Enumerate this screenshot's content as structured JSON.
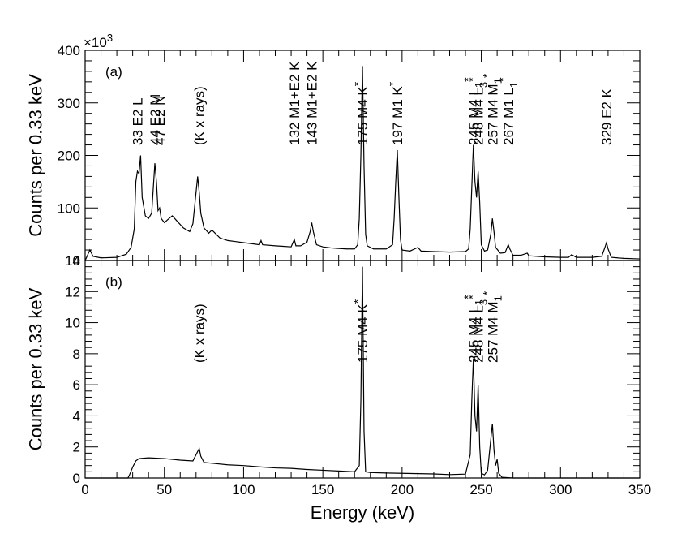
{
  "chart_data": [
    {
      "type": "line",
      "panel": "(a)",
      "ylabel": "Counts per 0.33 keV",
      "multiplier_base": "×10",
      "multiplier_exp": "3",
      "xlim": [
        0,
        350
      ],
      "ylim": [
        0,
        400
      ],
      "xticks": [
        "0",
        "50",
        "100",
        "150",
        "200",
        "250",
        "300",
        "350"
      ],
      "yticks": [
        "0",
        "100",
        "200",
        "300",
        "400"
      ],
      "annotations": [
        {
          "text": "33 E2 L",
          "x": 33
        },
        {
          "text": "44 E2 M",
          "x": 44
        },
        {
          "text": "47 E2 N",
          "x": 47
        },
        {
          "text": "(K x rays)",
          "x": 72
        },
        {
          "text": "132 M1+E2 K",
          "x": 132
        },
        {
          "text": "143 M1+E2 K",
          "x": 143
        },
        {
          "text": "175 M4 K*",
          "x": 175
        },
        {
          "text": "197 M1 K*",
          "x": 197
        },
        {
          "text": "245 M4 L1*",
          "x": 245
        },
        {
          "text": "248 M4 L3*",
          "x": 248
        },
        {
          "text": "257 M4 M1*",
          "x": 257
        },
        {
          "text": "267 M1 L1*",
          "x": 267
        },
        {
          "text": "329 E2 K",
          "x": 329
        }
      ],
      "background": [
        [
          0,
          0
        ],
        [
          3,
          20
        ],
        [
          5,
          8
        ],
        [
          10,
          5
        ],
        [
          20,
          6
        ],
        [
          26,
          12
        ],
        [
          29,
          25
        ],
        [
          31,
          60
        ],
        [
          32,
          150
        ],
        [
          33,
          170
        ],
        [
          34,
          165
        ],
        [
          35,
          200
        ],
        [
          36,
          120
        ],
        [
          38,
          85
        ],
        [
          40,
          80
        ],
        [
          42,
          90
        ],
        [
          44,
          185
        ],
        [
          45,
          150
        ],
        [
          46,
          95
        ],
        [
          47,
          100
        ],
        [
          48,
          80
        ],
        [
          50,
          72
        ],
        [
          53,
          80
        ],
        [
          55,
          85
        ],
        [
          58,
          75
        ],
        [
          62,
          62
        ],
        [
          66,
          55
        ],
        [
          68,
          70
        ],
        [
          69,
          100
        ],
        [
          70,
          130
        ],
        [
          71,
          160
        ],
        [
          72,
          130
        ],
        [
          73,
          90
        ],
        [
          75,
          62
        ],
        [
          78,
          52
        ],
        [
          80,
          58
        ],
        [
          82,
          52
        ],
        [
          85,
          43
        ],
        [
          90,
          38
        ],
        [
          95,
          36
        ],
        [
          100,
          34
        ],
        [
          105,
          32
        ],
        [
          110,
          30
        ],
        [
          111,
          38
        ],
        [
          112,
          30
        ],
        [
          120,
          28
        ],
        [
          125,
          27
        ],
        [
          130,
          26
        ],
        [
          132,
          40
        ],
        [
          133,
          28
        ],
        [
          136,
          28
        ],
        [
          140,
          35
        ],
        [
          142,
          55
        ],
        [
          143,
          72
        ],
        [
          144,
          55
        ],
        [
          146,
          30
        ],
        [
          150,
          26
        ],
        [
          155,
          24
        ],
        [
          160,
          23
        ],
        [
          165,
          22
        ],
        [
          170,
          22
        ],
        [
          172,
          30
        ],
        [
          173,
          80
        ],
        [
          174,
          200
        ],
        [
          175,
          370
        ],
        [
          176,
          180
        ],
        [
          177,
          50
        ],
        [
          178,
          28
        ],
        [
          182,
          22
        ],
        [
          186,
          22
        ],
        [
          190,
          22
        ],
        [
          194,
          30
        ],
        [
          195,
          80
        ],
        [
          196,
          150
        ],
        [
          197,
          210
        ],
        [
          198,
          120
        ],
        [
          199,
          40
        ],
        [
          200,
          20
        ],
        [
          205,
          18
        ],
        [
          210,
          25
        ],
        [
          212,
          18
        ],
        [
          220,
          17
        ],
        [
          230,
          16
        ],
        [
          240,
          17
        ],
        [
          242,
          22
        ],
        [
          243,
          60
        ],
        [
          244,
          140
        ],
        [
          245,
          220
        ],
        [
          246,
          150
        ],
        [
          247,
          120
        ],
        [
          248,
          170
        ],
        [
          249,
          110
        ],
        [
          250,
          30
        ],
        [
          252,
          18
        ],
        [
          254,
          20
        ],
        [
          256,
          50
        ],
        [
          257,
          80
        ],
        [
          258,
          55
        ],
        [
          259,
          25
        ],
        [
          262,
          14
        ],
        [
          265,
          15
        ],
        [
          267,
          30
        ],
        [
          268,
          22
        ],
        [
          270,
          10
        ],
        [
          275,
          10
        ],
        [
          279,
          14
        ],
        [
          280,
          9
        ],
        [
          290,
          7
        ],
        [
          300,
          6
        ],
        [
          305,
          6
        ],
        [
          307,
          11
        ],
        [
          310,
          6
        ],
        [
          320,
          6
        ],
        [
          326,
          8
        ],
        [
          328,
          25
        ],
        [
          329,
          34
        ],
        [
          330,
          22
        ],
        [
          332,
          6
        ],
        [
          340,
          4
        ],
        [
          350,
          3
        ]
      ]
    },
    {
      "type": "line",
      "panel": "(b)",
      "ylabel": "Counts per 0.33 keV",
      "xlabel": "Energy (keV)",
      "xlim": [
        0,
        350
      ],
      "ylim": [
        0,
        14
      ],
      "xticks": [
        "0",
        "50",
        "100",
        "150",
        "200",
        "250",
        "300",
        "350"
      ],
      "yticks": [
        "0",
        "2",
        "4",
        "6",
        "8",
        "10",
        "12",
        "14"
      ],
      "annotations": [
        {
          "text": "(K x rays)",
          "x": 72
        },
        {
          "text": "175 M4 K*",
          "x": 175
        },
        {
          "text": "245 M4 L1*",
          "x": 245
        },
        {
          "text": "248 M4 L3*",
          "x": 248
        },
        {
          "text": "257 M4 M1*",
          "x": 257
        }
      ],
      "background": [
        [
          0,
          0
        ],
        [
          27,
          0
        ],
        [
          28,
          0.2
        ],
        [
          30,
          0.7
        ],
        [
          32,
          1.1
        ],
        [
          34,
          1.25
        ],
        [
          40,
          1.3
        ],
        [
          50,
          1.25
        ],
        [
          60,
          1.15
        ],
        [
          68,
          1.1
        ],
        [
          70,
          1.5
        ],
        [
          72,
          1.9
        ],
        [
          73,
          1.4
        ],
        [
          75,
          1.0
        ],
        [
          80,
          0.95
        ],
        [
          90,
          0.85
        ],
        [
          100,
          0.8
        ],
        [
          110,
          0.72
        ],
        [
          120,
          0.65
        ],
        [
          130,
          0.62
        ],
        [
          140,
          0.55
        ],
        [
          150,
          0.5
        ],
        [
          160,
          0.45
        ],
        [
          170,
          0.4
        ],
        [
          173,
          0.8
        ],
        [
          174,
          5
        ],
        [
          175,
          13.6
        ],
        [
          176,
          3
        ],
        [
          177,
          0.4
        ],
        [
          180,
          0.35
        ],
        [
          190,
          0.32
        ],
        [
          200,
          0.3
        ],
        [
          210,
          0.28
        ],
        [
          220,
          0.26
        ],
        [
          230,
          0.22
        ],
        [
          240,
          0.25
        ],
        [
          243,
          1.5
        ],
        [
          244,
          5
        ],
        [
          245,
          7.7
        ],
        [
          246,
          4
        ],
        [
          247,
          3
        ],
        [
          248,
          6
        ],
        [
          249,
          2
        ],
        [
          250,
          0.3
        ],
        [
          252,
          0.2
        ],
        [
          254,
          0.5
        ],
        [
          256,
          2.5
        ],
        [
          257,
          3.5
        ],
        [
          258,
          1.8
        ],
        [
          259,
          0.8
        ],
        [
          260,
          1.2
        ],
        [
          261,
          0.3
        ],
        [
          263,
          0.05
        ],
        [
          270,
          0
        ],
        [
          350,
          0
        ]
      ]
    }
  ]
}
